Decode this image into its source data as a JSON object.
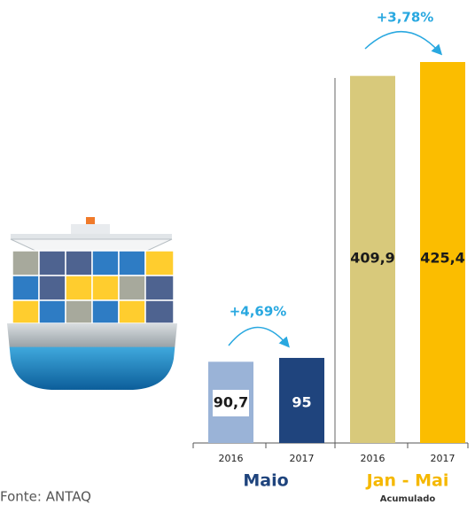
{
  "chart_data": {
    "type": "bar",
    "categories": [
      "2016",
      "2017",
      "2016",
      "2017"
    ],
    "values": [
      90.7,
      95,
      409.9,
      425.4
    ],
    "value_labels": [
      "90,7",
      "95",
      "409,9",
      "425,4"
    ],
    "colors": [
      "#9ab3d7",
      "#1f447d",
      "#d8c97b",
      "#fbbd00"
    ],
    "groups": [
      {
        "label": "Maio",
        "color": "#1f447d"
      },
      {
        "label": "Jan - Mai",
        "sublabel": "Acumulado",
        "color": "#f5b800"
      }
    ],
    "annotations": [
      "+4,69%",
      "+3,78%"
    ],
    "source": "Fonte: ANTAQ"
  }
}
